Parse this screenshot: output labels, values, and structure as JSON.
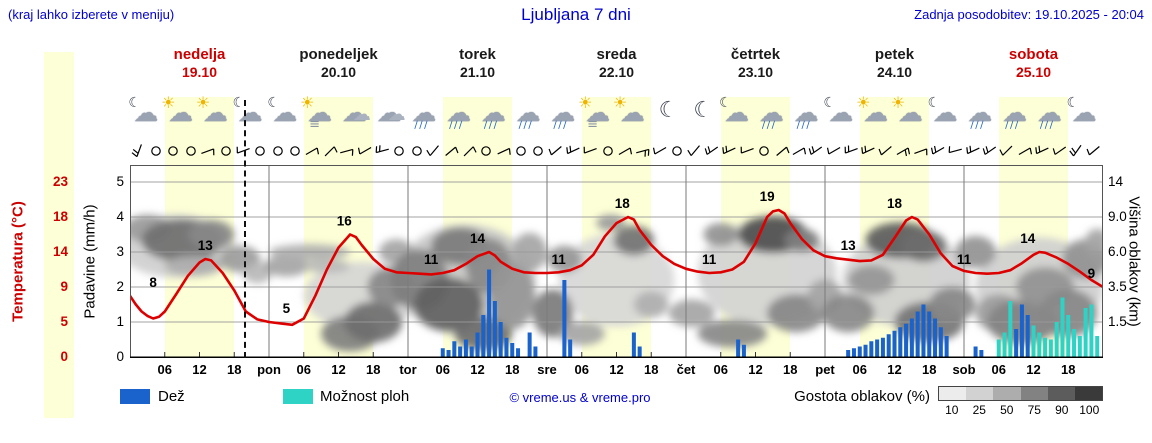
{
  "colors": {
    "accent_blue": "#0000cd",
    "red_text": "#cc0000",
    "temp_line": "#dd0000",
    "rain": "#1a62cc",
    "shower": "#2ed3c6",
    "day_band": "#fdffd6",
    "grid": "#9a9a9a",
    "day_line": "#7a7a7a"
  },
  "header": {
    "hint": "(kraj lahko izberete v meniju)",
    "title": "Ljubljana 7 dni",
    "updated": "Zadnja posodobitev: 19.10.2025 - 20:04"
  },
  "days": [
    {
      "name": "nedelja",
      "date": "19.10",
      "red": true,
      "icons": [
        "moon-cloud",
        "sun-cloud",
        "sun-cloud",
        "moon-cloud"
      ]
    },
    {
      "name": "ponedeljek",
      "date": "20.10",
      "red": false,
      "icons": [
        "moon-cloud",
        "fog-sun",
        "cloud",
        "cloud"
      ]
    },
    {
      "name": "torek",
      "date": "21.10",
      "red": false,
      "icons": [
        "rain",
        "rain",
        "rain",
        "rain"
      ]
    },
    {
      "name": "sreda",
      "date": "22.10",
      "red": false,
      "icons": [
        "rain",
        "fog-sun",
        "sun-cloud",
        "moon"
      ]
    },
    {
      "name": "četrtek",
      "date": "23.10",
      "red": false,
      "icons": [
        "moon",
        "moon-cloud",
        "rain",
        "rain"
      ]
    },
    {
      "name": "petek",
      "date": "24.10",
      "red": false,
      "icons": [
        "moon-cloud",
        "sun-cloud",
        "sun-cloud",
        "moon-cloud"
      ]
    },
    {
      "name": "sobota",
      "date": "25.10",
      "red": true,
      "icons": [
        "rain",
        "rain",
        "rain",
        "moon-cloud"
      ]
    }
  ],
  "day_abbrs": [
    "pon",
    "tor",
    "sre",
    "čet",
    "pet",
    "sob"
  ],
  "hour_ticks": [
    "06",
    "12",
    "18"
  ],
  "axes": {
    "temp": {
      "title": "Temperatura (°C)",
      "ticks": [
        "23",
        "18",
        "14",
        "9",
        "5",
        "0"
      ]
    },
    "precip": {
      "title": "Padavine (mm/h)",
      "ticks": [
        "5",
        "4",
        "3",
        "2",
        "1",
        "0"
      ]
    },
    "cloud": {
      "title": "Višina oblakov (km)",
      "ticks": [
        "14",
        "9.0",
        "6.0",
        "3.5",
        "1.5"
      ]
    }
  },
  "legend": {
    "rain_label": "Dež",
    "shower_label": "Možnost ploh",
    "credit": "© vreme.us & vreme.pro",
    "cloud_label": "Gostota oblakov (%)",
    "cloud_scale": [
      "10",
      "25",
      "50",
      "75",
      "90",
      "100"
    ],
    "cloud_scale_colors": [
      "#ececec",
      "#d2d2d2",
      "#adadad",
      "#828282",
      "#5c5c5c",
      "#3a3a3a"
    ]
  },
  "wind": [
    {
      "d": 200,
      "n": 2
    },
    {
      "c": 1
    },
    {
      "c": 1
    },
    {
      "c": 1
    },
    {
      "d": 70,
      "n": 1
    },
    {
      "c": 1
    },
    {
      "d": 250,
      "n": 1
    },
    {
      "c": 1
    },
    {
      "c": 1
    },
    {
      "c": 1
    },
    {
      "d": 60,
      "n": 1
    },
    {
      "d": 45,
      "n": 1
    },
    {
      "d": 75,
      "n": 1
    },
    {
      "d": 240,
      "n": 1
    },
    {
      "d": 255,
      "n": 2
    },
    {
      "c": 1
    },
    {
      "c": 1
    },
    {
      "d": 220,
      "n": 1
    },
    {
      "d": 50,
      "n": 1
    },
    {
      "d": 45,
      "n": 1
    },
    {
      "c": 1
    },
    {
      "d": 65,
      "n": 1
    },
    {
      "c": 1
    },
    {
      "c": 1
    },
    {
      "d": 230,
      "n": 1
    },
    {
      "d": 245,
      "n": 2
    },
    {
      "d": 250,
      "n": 1
    },
    {
      "c": 1
    },
    {
      "d": 60,
      "n": 1
    },
    {
      "d": 75,
      "n": 2
    },
    {
      "d": 240,
      "n": 1
    },
    {
      "c": 1
    },
    {
      "d": 220,
      "n": 1
    },
    {
      "d": 235,
      "n": 2
    },
    {
      "d": 245,
      "n": 2
    },
    {
      "d": 250,
      "n": 1
    },
    {
      "c": 1
    },
    {
      "d": 50,
      "n": 1
    },
    {
      "d": 60,
      "n": 1
    },
    {
      "d": 235,
      "n": 2
    },
    {
      "d": 240,
      "n": 1
    },
    {
      "d": 250,
      "n": 2
    },
    {
      "d": 245,
      "n": 2
    },
    {
      "d": 230,
      "n": 1
    },
    {
      "d": 60,
      "n": 2
    },
    {
      "d": 70,
      "n": 1
    },
    {
      "d": 240,
      "n": 2
    },
    {
      "d": 255,
      "n": 1
    },
    {
      "d": 245,
      "n": 2
    },
    {
      "d": 235,
      "n": 2
    },
    {
      "d": 225,
      "n": 1
    },
    {
      "d": 60,
      "n": 1
    },
    {
      "d": 245,
      "n": 2
    },
    {
      "d": 235,
      "n": 1
    },
    {
      "d": 215,
      "n": 2
    },
    {
      "d": 230,
      "n": 1
    }
  ],
  "chart_data": {
    "type": "meteogram",
    "title": "Ljubljana 7 dni",
    "x_axis": {
      "unit": "hours from 19.10.2025 00:00",
      "range": [
        0,
        168
      ],
      "day_width_hours": 24,
      "daylight_hours": [
        6,
        18
      ]
    },
    "y_axes": {
      "precip_mm_h_ticks": [
        0,
        1,
        2,
        3,
        4,
        5
      ],
      "temp_c_gridline_anchors": [
        0,
        5,
        9,
        14,
        18,
        23
      ],
      "cloud_height_km_gridline_anchors": [
        0,
        1.5,
        3.5,
        6,
        9,
        14
      ]
    },
    "now_hour": 20,
    "temperature_c": [
      [
        0,
        8
      ],
      [
        1,
        7
      ],
      [
        2,
        6.2
      ],
      [
        3,
        5.7
      ],
      [
        4,
        5.4
      ],
      [
        5,
        5.6
      ],
      [
        6,
        6.2
      ],
      [
        8,
        8.2
      ],
      [
        10,
        10.6
      ],
      [
        12,
        12.5
      ],
      [
        13,
        13
      ],
      [
        14,
        12.8
      ],
      [
        16,
        11
      ],
      [
        18,
        8.6
      ],
      [
        20,
        6.2
      ],
      [
        22,
        5.3
      ],
      [
        24,
        5
      ],
      [
        26,
        4.8
      ],
      [
        28,
        4.6
      ],
      [
        30,
        5.4
      ],
      [
        32,
        8
      ],
      [
        34,
        11.5
      ],
      [
        36,
        14.5
      ],
      [
        38,
        16
      ],
      [
        39,
        15.7
      ],
      [
        40,
        14.8
      ],
      [
        42,
        13
      ],
      [
        44,
        11.6
      ],
      [
        46,
        11.1
      ],
      [
        48,
        11
      ],
      [
        50,
        10.9
      ],
      [
        52,
        10.8
      ],
      [
        54,
        11
      ],
      [
        56,
        11.4
      ],
      [
        58,
        12.3
      ],
      [
        60,
        13.4
      ],
      [
        62,
        14
      ],
      [
        63,
        13.5
      ],
      [
        64,
        12.6
      ],
      [
        66,
        11.6
      ],
      [
        68,
        11.1
      ],
      [
        70,
        11
      ],
      [
        72,
        11
      ],
      [
        74,
        11.1
      ],
      [
        76,
        11.4
      ],
      [
        78,
        12.1
      ],
      [
        80,
        13.6
      ],
      [
        82,
        15.8
      ],
      [
        84,
        17.3
      ],
      [
        86,
        18
      ],
      [
        87,
        17.7
      ],
      [
        88,
        16.5
      ],
      [
        90,
        14.8
      ],
      [
        92,
        13.4
      ],
      [
        94,
        12.3
      ],
      [
        96,
        11.6
      ],
      [
        98,
        11.2
      ],
      [
        100,
        11
      ],
      [
        102,
        11.1
      ],
      [
        104,
        11.5
      ],
      [
        106,
        12.6
      ],
      [
        108,
        15
      ],
      [
        110,
        18
      ],
      [
        111,
        18.8
      ],
      [
        112,
        19
      ],
      [
        113,
        18.5
      ],
      [
        114,
        17.3
      ],
      [
        116,
        15.5
      ],
      [
        118,
        14.2
      ],
      [
        120,
        13.4
      ],
      [
        122,
        13.1
      ],
      [
        124,
        12.9
      ],
      [
        126,
        12.7
      ],
      [
        128,
        12.8
      ],
      [
        130,
        13.6
      ],
      [
        132,
        15.6
      ],
      [
        134,
        17.6
      ],
      [
        135,
        18
      ],
      [
        136,
        17.7
      ],
      [
        138,
        16
      ],
      [
        140,
        13.8
      ],
      [
        142,
        12
      ],
      [
        144,
        11.3
      ],
      [
        146,
        11
      ],
      [
        148,
        10.9
      ],
      [
        150,
        11
      ],
      [
        152,
        11.4
      ],
      [
        154,
        12.4
      ],
      [
        156,
        13.6
      ],
      [
        157,
        14
      ],
      [
        158,
        13.9
      ],
      [
        160,
        13.2
      ],
      [
        162,
        12.3
      ],
      [
        164,
        11.2
      ],
      [
        166,
        10
      ],
      [
        168,
        9
      ]
    ],
    "temp_point_labels": [
      {
        "h": 4,
        "v": 8
      },
      {
        "h": 13,
        "v": 13
      },
      {
        "h": 27,
        "v": 5
      },
      {
        "h": 37,
        "v": 16
      },
      {
        "h": 52,
        "v": 11
      },
      {
        "h": 60,
        "v": 14
      },
      {
        "h": 74,
        "v": 11
      },
      {
        "h": 85,
        "v": 18
      },
      {
        "h": 100,
        "v": 11
      },
      {
        "h": 110,
        "v": 19
      },
      {
        "h": 124,
        "v": 13
      },
      {
        "h": 132,
        "v": 18
      },
      {
        "h": 144,
        "v": 11
      },
      {
        "h": 155,
        "v": 14
      },
      {
        "h": 166,
        "v": 9
      }
    ],
    "rain_mm_h": [
      [
        54,
        0.25
      ],
      [
        55,
        0.2
      ],
      [
        56,
        0.45
      ],
      [
        57,
        0.3
      ],
      [
        58,
        0.5
      ],
      [
        59,
        0.3
      ],
      [
        60,
        0.7
      ],
      [
        61,
        1.2
      ],
      [
        62,
        2.5
      ],
      [
        63,
        1.6
      ],
      [
        64,
        1
      ],
      [
        65,
        0.55
      ],
      [
        66,
        0.4
      ],
      [
        67,
        0.25
      ],
      [
        69,
        0.7
      ],
      [
        70,
        0.3
      ],
      [
        75,
        2.2
      ],
      [
        76,
        0.5
      ],
      [
        87,
        0.7
      ],
      [
        88,
        0.3
      ],
      [
        105,
        0.5
      ],
      [
        106,
        0.35
      ],
      [
        124,
        0.2
      ],
      [
        125,
        0.25
      ],
      [
        126,
        0.3
      ],
      [
        127,
        0.35
      ],
      [
        128,
        0.45
      ],
      [
        129,
        0.5
      ],
      [
        130,
        0.55
      ],
      [
        131,
        0.65
      ],
      [
        132,
        0.75
      ],
      [
        133,
        0.85
      ],
      [
        134,
        0.95
      ],
      [
        135,
        1.1
      ],
      [
        136,
        1.3
      ],
      [
        137,
        1.5
      ],
      [
        138,
        1.3
      ],
      [
        139,
        1.1
      ],
      [
        140,
        0.85
      ],
      [
        141,
        0.6
      ],
      [
        146,
        0.3
      ],
      [
        147,
        0.2
      ],
      [
        153,
        0.8
      ],
      [
        154,
        1.5
      ],
      [
        155,
        1.2
      ]
    ],
    "shower_mm_h": [
      [
        150,
        0.5
      ],
      [
        151,
        0.7
      ],
      [
        152,
        1.6
      ],
      [
        156,
        0.9
      ],
      [
        157,
        0.7
      ],
      [
        158,
        0.55
      ],
      [
        159,
        0.5
      ],
      [
        160,
        1
      ],
      [
        161,
        1.7
      ],
      [
        162,
        1.2
      ],
      [
        163,
        0.8
      ],
      [
        164,
        0.6
      ],
      [
        165,
        1.4
      ],
      [
        166,
        1.5
      ],
      [
        167,
        0.6
      ]
    ],
    "cloud_blobs": [
      {
        "h": 8,
        "km": 6.5,
        "wh": 20,
        "hk": 5,
        "g": 18
      },
      {
        "h": 40,
        "km": 3,
        "wh": 20,
        "hk": 4,
        "g": 15
      },
      {
        "h": 58,
        "km": 4,
        "wh": 24,
        "hk": 7,
        "g": 22
      },
      {
        "h": 84,
        "km": 4,
        "wh": 20,
        "hk": 6,
        "g": 14
      },
      {
        "h": 110,
        "km": 4.5,
        "wh": 24,
        "hk": 7,
        "g": 16
      },
      {
        "h": 134,
        "km": 4,
        "wh": 22,
        "hk": 6,
        "g": 18
      },
      {
        "h": 157,
        "km": 3.5,
        "wh": 22,
        "hk": 6,
        "g": 18
      },
      {
        "h": 3,
        "km": 8,
        "wh": 8,
        "hk": 2.5,
        "g": 45
      },
      {
        "h": 9,
        "km": 7,
        "wh": 14,
        "hk": 3.5,
        "g": 68
      },
      {
        "h": 14,
        "km": 7.5,
        "wh": 8,
        "hk": 2.5,
        "g": 55
      },
      {
        "h": 11,
        "km": 5,
        "wh": 10,
        "hk": 1.5,
        "g": 35
      },
      {
        "h": 19,
        "km": 5.5,
        "wh": 7,
        "hk": 2,
        "g": 45
      },
      {
        "h": 22,
        "km": 4.5,
        "wh": 5,
        "hk": 1.5,
        "g": 30
      },
      {
        "h": 27,
        "km": 5,
        "wh": 8,
        "hk": 1.5,
        "g": 40
      },
      {
        "h": 31,
        "km": 6,
        "wh": 14,
        "hk": 1.2,
        "g": 35
      },
      {
        "h": 34,
        "km": 5,
        "wh": 8,
        "hk": 1,
        "g": 30
      },
      {
        "h": 38,
        "km": 1,
        "wh": 10,
        "hk": 1.6,
        "g": 60
      },
      {
        "h": 42,
        "km": 1.5,
        "wh": 10,
        "hk": 2,
        "g": 68
      },
      {
        "h": 45,
        "km": 3.5,
        "wh": 8,
        "hk": 2.5,
        "g": 55
      },
      {
        "h": 46,
        "km": 6,
        "wh": 6,
        "hk": 2,
        "g": 40
      },
      {
        "h": 50,
        "km": 4,
        "wh": 10,
        "hk": 4,
        "g": 60
      },
      {
        "h": 55,
        "km": 2.5,
        "wh": 12,
        "hk": 3,
        "g": 75
      },
      {
        "h": 57,
        "km": 6.5,
        "wh": 10,
        "hk": 3,
        "g": 62
      },
      {
        "h": 61,
        "km": 1,
        "wh": 10,
        "hk": 1.5,
        "g": 70
      },
      {
        "h": 62,
        "km": 5,
        "wh": 8,
        "hk": 4,
        "g": 55
      },
      {
        "h": 66,
        "km": 3,
        "wh": 8,
        "hk": 4,
        "g": 48
      },
      {
        "h": 69,
        "km": 6,
        "wh": 6,
        "hk": 3,
        "g": 40
      },
      {
        "h": 73,
        "km": 2,
        "wh": 7,
        "hk": 2.5,
        "g": 62
      },
      {
        "h": 75,
        "km": 5.5,
        "wh": 6,
        "hk": 2,
        "g": 48
      },
      {
        "h": 78,
        "km": 1,
        "wh": 8,
        "hk": 1,
        "g": 40
      },
      {
        "h": 83,
        "km": 8.5,
        "wh": 5,
        "hk": 1.5,
        "g": 45
      },
      {
        "h": 87,
        "km": 7,
        "wh": 7,
        "hk": 2.5,
        "g": 66
      },
      {
        "h": 90,
        "km": 2.5,
        "wh": 6,
        "hk": 1.5,
        "g": 35
      },
      {
        "h": 97,
        "km": 2,
        "wh": 8,
        "hk": 1.5,
        "g": 40
      },
      {
        "h": 102,
        "km": 7.5,
        "wh": 6,
        "hk": 2,
        "g": 50
      },
      {
        "h": 104,
        "km": 1,
        "wh": 12,
        "hk": 1.2,
        "g": 55
      },
      {
        "h": 111,
        "km": 7.5,
        "wh": 12,
        "hk": 3.2,
        "g": 85
      },
      {
        "h": 116,
        "km": 7,
        "wh": 6,
        "hk": 2,
        "g": 60
      },
      {
        "h": 115,
        "km": 2,
        "wh": 10,
        "hk": 2,
        "g": 55
      },
      {
        "h": 120,
        "km": 3,
        "wh": 6,
        "hk": 2,
        "g": 40
      },
      {
        "h": 124,
        "km": 2,
        "wh": 9,
        "hk": 2,
        "g": 55
      },
      {
        "h": 128,
        "km": 4,
        "wh": 8,
        "hk": 2,
        "g": 48
      },
      {
        "h": 133,
        "km": 7,
        "wh": 12,
        "hk": 3,
        "g": 78
      },
      {
        "h": 137,
        "km": 6.5,
        "wh": 8,
        "hk": 2.5,
        "g": 70
      },
      {
        "h": 138,
        "km": 1.5,
        "wh": 12,
        "hk": 2,
        "g": 65
      },
      {
        "h": 142,
        "km": 2.5,
        "wh": 8,
        "hk": 2,
        "g": 55
      },
      {
        "h": 146,
        "km": 6,
        "wh": 7,
        "hk": 2.5,
        "g": 50
      },
      {
        "h": 150,
        "km": 2,
        "wh": 8,
        "hk": 2,
        "g": 45
      },
      {
        "h": 154,
        "km": 1.5,
        "wh": 12,
        "hk": 2.2,
        "g": 58
      },
      {
        "h": 158,
        "km": 3.5,
        "wh": 10,
        "hk": 2.5,
        "g": 50
      },
      {
        "h": 162,
        "km": 2,
        "wh": 10,
        "hk": 2.5,
        "g": 55
      },
      {
        "h": 165,
        "km": 5.5,
        "wh": 8,
        "hk": 3,
        "g": 50
      },
      {
        "h": 167,
        "km": 7,
        "wh": 4,
        "hk": 2,
        "g": 40
      }
    ]
  }
}
